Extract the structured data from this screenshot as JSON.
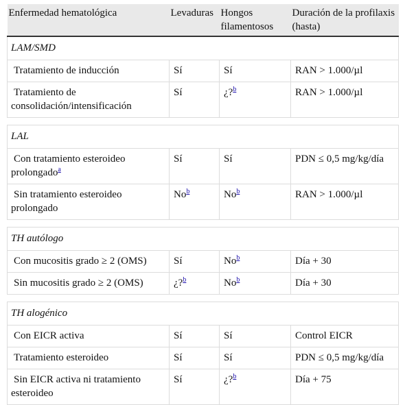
{
  "headers": [
    "Enfermedad hematológica",
    "Levaduras",
    "Hongos filamentosos",
    "Duración de la profilaxis (hasta)"
  ],
  "groups": [
    {
      "name": "LAM/SMD",
      "rows": [
        {
          "condition": "Tratamiento de inducción",
          "condition_note": "",
          "levaduras": "Sí",
          "levaduras_note": "",
          "hongos": "Sí",
          "hongos_note": "",
          "duracion": "RAN > 1.000/µl"
        },
        {
          "condition": "Tratamiento de consolidación/intensificación",
          "condition_note": "",
          "levaduras": "Sí",
          "levaduras_note": "",
          "hongos": "¿?",
          "hongos_note": "b",
          "duracion": "RAN > 1.000/µl"
        }
      ]
    },
    {
      "name": "LAL",
      "rows": [
        {
          "condition": "Con tratamiento esteroideo prolongado",
          "condition_note": "a",
          "levaduras": "Sí",
          "levaduras_note": "",
          "hongos": "Sí",
          "hongos_note": "",
          "duracion": "PDN ≤ 0,5 mg/kg/día"
        },
        {
          "condition": "Sin tratamiento esteroideo prolongado",
          "condition_note": "",
          "levaduras": "No",
          "levaduras_note": "b",
          "hongos": "No",
          "hongos_note": "b",
          "duracion": "RAN > 1.000/µl"
        }
      ]
    },
    {
      "name": "TH autólogo",
      "rows": [
        {
          "condition": "Con mucositis grado ≥ 2 (OMS)",
          "condition_note": "",
          "levaduras": "Sí",
          "levaduras_note": "",
          "hongos": "No",
          "hongos_note": "b",
          "duracion": "Día + 30"
        },
        {
          "condition": "Sin mucositis grado ≥ 2 (OMS)",
          "condition_note": "",
          "levaduras": "¿?",
          "levaduras_note": "b",
          "hongos": "No",
          "hongos_note": "b",
          "duracion": "Día + 30"
        }
      ]
    },
    {
      "name": "TH alogénico",
      "rows": [
        {
          "condition": "Con EICR activa",
          "condition_note": "",
          "levaduras": "Sí",
          "levaduras_note": "",
          "hongos": "Sí",
          "hongos_note": "",
          "duracion": "Control EICR"
        },
        {
          "condition": "Tratamiento esteroideo",
          "condition_note": "",
          "levaduras": "Sí",
          "levaduras_note": "",
          "hongos": "Sí",
          "hongos_note": "",
          "duracion": "PDN ≤ 0,5 mg/kg/día"
        },
        {
          "condition": "Sin EICR activa ni tratamiento esteroideo",
          "condition_note": "",
          "levaduras": "Sí",
          "levaduras_note": "",
          "hongos": "¿?",
          "hongos_note": "b",
          "duracion": "Día + 75"
        }
      ]
    }
  ]
}
